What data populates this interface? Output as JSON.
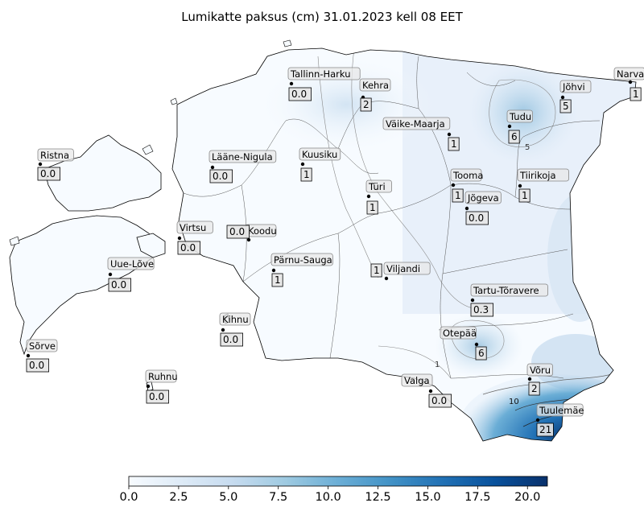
{
  "title": "Lumikatte paksus (cm) 31.01.2023 kell 08 EET",
  "colorbar": {
    "min": 0,
    "max": 21,
    "ticks": [
      "0.0",
      "2.5",
      "5.0",
      "7.5",
      "10.0",
      "12.5",
      "15.0",
      "17.5",
      "20.0"
    ],
    "colormap": "Blues"
  },
  "contour_labels": [
    "1",
    "5",
    "10"
  ],
  "stations": [
    {
      "name": "Tallinn-Harku",
      "value": "0.0"
    },
    {
      "name": "Kehra",
      "value": "2"
    },
    {
      "name": "Narva",
      "value": "1"
    },
    {
      "name": "Jõhvi",
      "value": "5"
    },
    {
      "name": "Tudu",
      "value": "6"
    },
    {
      "name": "Väike-Maarja",
      "value": "1"
    },
    {
      "name": "Ristna",
      "value": "0.0"
    },
    {
      "name": "Lääne-Nigula",
      "value": "0.0"
    },
    {
      "name": "Kuusiku",
      "value": "1"
    },
    {
      "name": "Türi",
      "value": "1"
    },
    {
      "name": "Tooma",
      "value": "1"
    },
    {
      "name": "Tiirikoja",
      "value": "1"
    },
    {
      "name": "Jõgeva",
      "value": "0.0"
    },
    {
      "name": "Virtsu",
      "value": "0.0"
    },
    {
      "name": "Koodu",
      "value": "0.0"
    },
    {
      "name": "Uue-Lõve",
      "value": "0.0"
    },
    {
      "name": "Pärnu-Sauga",
      "value": "1"
    },
    {
      "name": "Viljandi",
      "value": "1"
    },
    {
      "name": "Tartu-Tõravere",
      "value": "0.3"
    },
    {
      "name": "Kihnu",
      "value": "0.0"
    },
    {
      "name": "Sõrve",
      "value": "0.0"
    },
    {
      "name": "Otepää",
      "value": "6"
    },
    {
      "name": "Ruhnu",
      "value": "0.0"
    },
    {
      "name": "Võru",
      "value": "2"
    },
    {
      "name": "Valga",
      "value": "0.0"
    },
    {
      "name": "Tuulemäe",
      "value": "21"
    }
  ]
}
